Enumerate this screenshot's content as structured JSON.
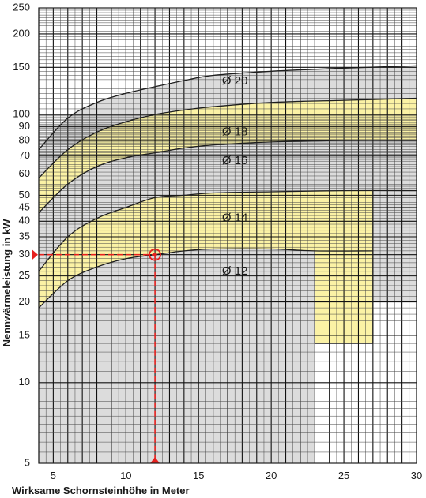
{
  "chart_data": {
    "type": "area",
    "title": "",
    "xlabel": "Wirksame Schornsteinhöhe in Meter",
    "ylabel": "Nennwärmeleistung in kW",
    "x_scale": "linear",
    "y_scale": "log",
    "xlim": [
      4,
      30
    ],
    "ylim": [
      5,
      250
    ],
    "x_ticks": [
      "5",
      "10",
      "15",
      "20",
      "25",
      "30"
    ],
    "y_ticks": [
      "5",
      "10",
      "15",
      "20",
      "25",
      "30",
      "35",
      "40",
      "45",
      "50",
      "60",
      "70",
      "80",
      "90",
      "100",
      "150",
      "200",
      "250"
    ],
    "grid": true,
    "colors": {
      "grey_band": "#dcdcdc",
      "yellow_band": "#fbf2a5",
      "curve": "#1e1e1e",
      "marker": "#e8201e"
    },
    "bands": [
      {
        "label": "Ø 20",
        "fill": "grey",
        "x": [
          4,
          6,
          8,
          10,
          12,
          14,
          16,
          20,
          25,
          30
        ],
        "upper": [
          74,
          97,
          111,
          120,
          127,
          134,
          140,
          145,
          149,
          152
        ],
        "lower": [
          58,
          74,
          86,
          94,
          100,
          104,
          107,
          111,
          113,
          115
        ]
      },
      {
        "label": "Ø 18",
        "fill": "yellow",
        "x": [
          4,
          6,
          8,
          10,
          12,
          14,
          16,
          20,
          25,
          30
        ],
        "upper": [
          58,
          74,
          86,
          94,
          100,
          104,
          107,
          111,
          113,
          115
        ],
        "lower": [
          43,
          55,
          64,
          69,
          72,
          75,
          77,
          79,
          80,
          80
        ]
      },
      {
        "label": "Ø 16",
        "fill": "grey",
        "x": [
          4,
          6,
          8,
          10,
          12,
          14,
          16,
          20,
          25,
          30
        ],
        "upper": [
          43,
          55,
          64,
          69,
          72,
          75,
          77,
          79,
          80,
          80
        ],
        "lower": [
          26,
          35,
          41,
          45,
          49,
          50,
          51,
          51.5,
          52,
          52
        ],
        "extra_region": "below Ø 14 band to 20 kW, x 27–30"
      },
      {
        "label": "Ø 14",
        "fill": "yellow",
        "x": [
          4,
          6,
          8,
          10,
          12,
          14,
          16,
          20,
          23,
          27
        ],
        "upper": [
          26,
          35,
          41,
          45,
          49,
          50,
          51,
          51.5,
          52,
          52
        ],
        "lower": [
          19,
          24,
          27,
          29,
          30,
          31,
          31.5,
          31.5,
          31,
          31
        ],
        "bottom_kW": 14,
        "x_range": [
          4,
          27
        ]
      },
      {
        "label": "Ø 12",
        "fill": "grey",
        "x": [
          4,
          6,
          8,
          10,
          12,
          14,
          16,
          20,
          23
        ],
        "upper": [
          19,
          24,
          27,
          29,
          30,
          31,
          31.5,
          31.5,
          31
        ],
        "bottom_kW": 5,
        "x_range": [
          4,
          23
        ]
      }
    ],
    "example_point": {
      "x": 12,
      "y": 30
    }
  }
}
